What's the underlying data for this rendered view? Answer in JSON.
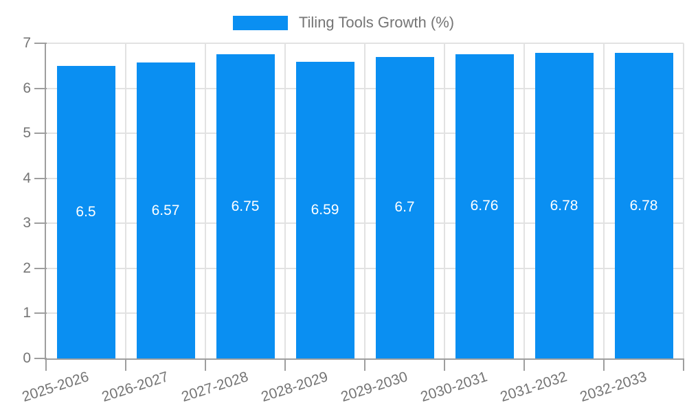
{
  "chart_data": {
    "type": "bar",
    "title": "Tiling Tools Growth (%)",
    "categories": [
      "2025-2026",
      "2026-2027",
      "2027-2028",
      "2028-2029",
      "2029-2030",
      "2030-2031",
      "2031-2032",
      "2032-2033"
    ],
    "values": [
      6.5,
      6.57,
      6.75,
      6.59,
      6.7,
      6.76,
      6.78,
      6.78
    ],
    "value_labels": [
      "6.5",
      "6.57",
      "6.75",
      "6.59",
      "6.7",
      "6.76",
      "6.78",
      "6.78"
    ],
    "xlabel": "",
    "ylabel": "",
    "ylim": [
      0,
      7
    ],
    "yticks": [
      0,
      1,
      2,
      3,
      4,
      5,
      6,
      7
    ],
    "grid": true,
    "legend_position": "top",
    "colors": {
      "bar": "#0a8ff2",
      "bar_label": "#ffffff",
      "axis": "#9e9e9e",
      "grid": "#e2e2e2",
      "text": "#757575",
      "background": "#ffffff"
    }
  }
}
